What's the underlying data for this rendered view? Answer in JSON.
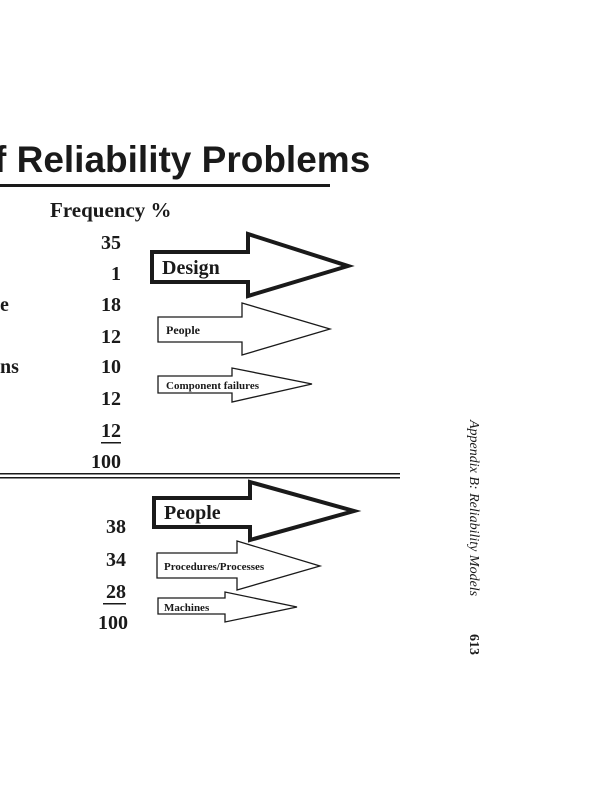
{
  "title": "f Reliability Problems",
  "column_header": "Frequency %",
  "table1": {
    "rows": [
      {
        "label": null,
        "value": "35"
      },
      {
        "label": null,
        "value": "1"
      },
      {
        "label": "e",
        "value": "18"
      },
      {
        "label": null,
        "value": "12"
      },
      {
        "label": "ns",
        "value": "10"
      },
      {
        "label": null,
        "value": "12"
      },
      {
        "label": null,
        "value": "12"
      }
    ],
    "total": "100",
    "arrows": [
      "Design",
      "People",
      "Component failures"
    ]
  },
  "table2": {
    "rows": [
      "38",
      "34",
      "28"
    ],
    "total": "100",
    "arrows": [
      "People",
      "Procedures/Processes",
      "Machines"
    ]
  },
  "running_head": "Appendix B: Reliability Models",
  "page_number": "613"
}
